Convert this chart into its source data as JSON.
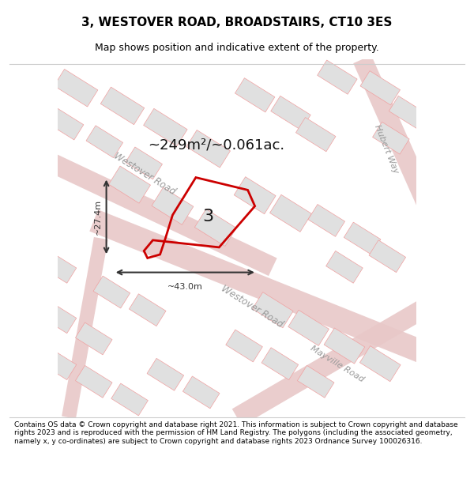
{
  "title": "3, WESTOVER ROAD, BROADSTAIRS, CT10 3ES",
  "subtitle": "Map shows position and indicative extent of the property.",
  "area_text": "~249m²/~0.061ac.",
  "label_number": "3",
  "dim_width": "~43.0m",
  "dim_height": "~27.4m",
  "footer": "Contains OS data © Crown copyright and database right 2021. This information is subject to Crown copyright and database rights 2023 and is reproduced with the permission of HM Land Registry. The polygons (including the associated geometry, namely x, y co-ordinates) are subject to Crown copyright and database rights 2023 Ordnance Survey 100026316.",
  "bg_color": "#f5f0f0",
  "road_color": "#f0a0a0",
  "building_color": "#e0e0e0",
  "building_edge_color": "#f0a0a0",
  "plot_color_fill": "none",
  "plot_color_edge": "#cc0000",
  "road_label_color": "#999999",
  "dim_color": "#333333",
  "title_color": "#000000",
  "footer_color": "#000000",
  "map_xlim": [
    0,
    10
  ],
  "map_ylim": [
    0,
    10
  ]
}
